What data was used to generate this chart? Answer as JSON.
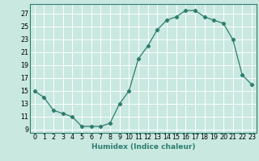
{
  "x": [
    0,
    1,
    2,
    3,
    4,
    5,
    6,
    7,
    8,
    9,
    10,
    11,
    12,
    13,
    14,
    15,
    16,
    17,
    18,
    19,
    20,
    21,
    22,
    23
  ],
  "y": [
    15,
    14,
    12,
    11.5,
    11,
    9.5,
    9.5,
    9.5,
    10,
    13,
    15,
    20,
    22,
    24.5,
    26,
    26.5,
    27.5,
    27.5,
    26.5,
    26,
    25.5,
    23,
    17.5,
    16
  ],
  "line_color": "#2e7d6e",
  "marker": "D",
  "marker_size": 2.2,
  "bg_color": "#c8e8e0",
  "grid_color": "#ffffff",
  "xlabel": "Humidex (Indice chaleur)",
  "xlim": [
    -0.5,
    23.5
  ],
  "ylim": [
    8.5,
    28.5
  ],
  "yticks": [
    9,
    11,
    13,
    15,
    17,
    19,
    21,
    23,
    25,
    27
  ],
  "xticks": [
    0,
    1,
    2,
    3,
    4,
    5,
    6,
    7,
    8,
    9,
    10,
    11,
    12,
    13,
    14,
    15,
    16,
    17,
    18,
    19,
    20,
    21,
    22,
    23
  ],
  "xlabel_fontsize": 6.5,
  "tick_fontsize": 5.8
}
